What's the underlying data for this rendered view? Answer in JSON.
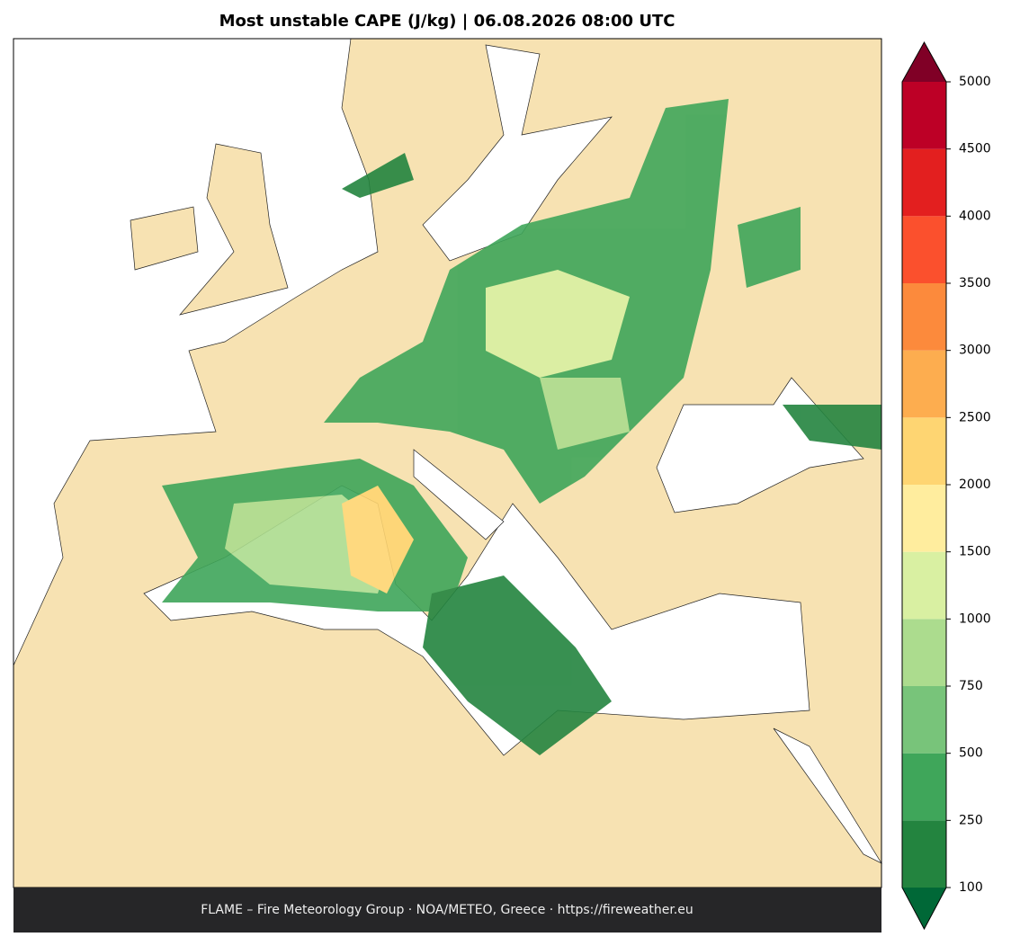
{
  "title": "Most unstable CAPE (J/kg)  |  06.08.2026 08:00 UTC",
  "footer": "FLAME – Fire Meteorology Group · NOA/METEO, Greece · https://fireweather.eu",
  "colorbar": {
    "levels": [
      100,
      250,
      500,
      750,
      1000,
      1500,
      2000,
      2500,
      3000,
      3500,
      4000,
      4500,
      5000
    ],
    "colors": [
      "#23843f",
      "#3fa65a",
      "#78c47a",
      "#acdc8e",
      "#d9f0a2",
      "#ffed9e",
      "#fed572",
      "#fdad4f",
      "#fc8a3c",
      "#fb502d",
      "#e31f1f",
      "#bd0026"
    ],
    "under_color": "#006837",
    "over_color": "#800026"
  }
}
